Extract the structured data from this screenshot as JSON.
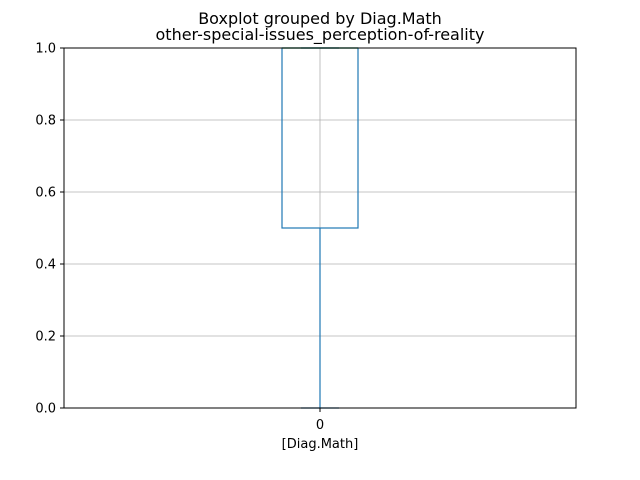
{
  "chart_data": {
    "type": "boxplot",
    "suptitle": "Boxplot grouped by Diag.Math",
    "title": "other-special-issues_perception-of-reality",
    "xlabel": "[Diag.Math]",
    "ylabel": "",
    "ylim": [
      0.0,
      1.0
    ],
    "yticks": [
      0.0,
      0.2,
      0.4,
      0.6,
      0.8,
      1.0
    ],
    "ytick_labels": [
      "0.0",
      "0.2",
      "0.4",
      "0.6",
      "0.8",
      "1.0"
    ],
    "grid": true,
    "categories": [
      "0"
    ],
    "boxes": [
      {
        "category": "0",
        "whisker_low": 0.0,
        "q1": 0.5,
        "median": 1.0,
        "q3": 1.0,
        "whisker_high": 1.0
      }
    ],
    "colors": {
      "box": "#1f77b4",
      "median": "#2ca02c",
      "grid": "#b0b0b0",
      "axes": "#000000"
    }
  }
}
